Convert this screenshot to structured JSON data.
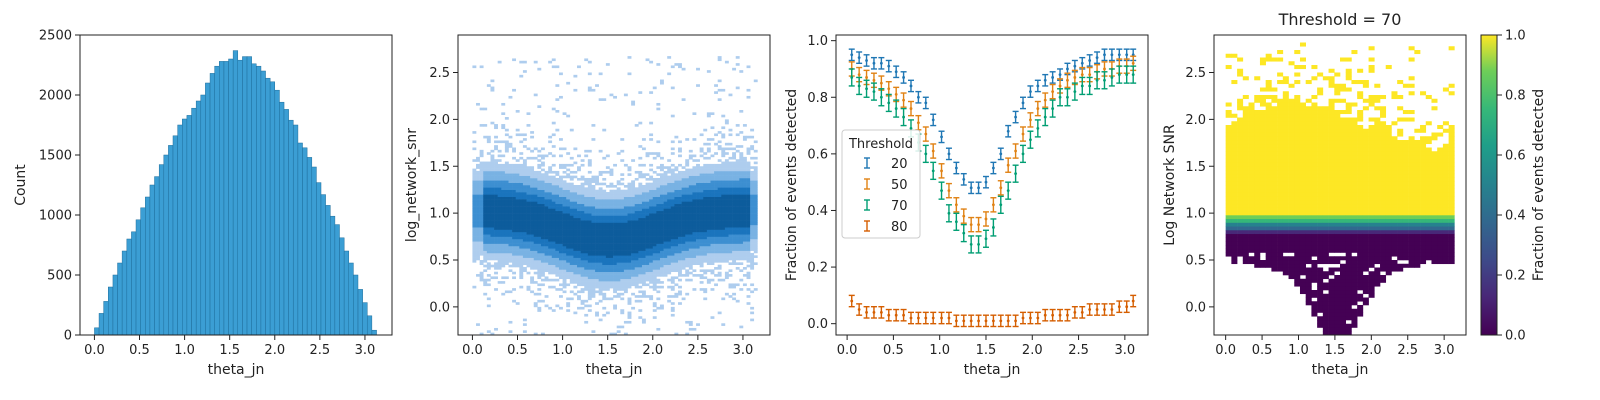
{
  "chart_data": [
    {
      "type": "bar",
      "title": "",
      "xlabel": "theta_jn",
      "ylabel": "Count",
      "xlim": [
        -0.16,
        3.3
      ],
      "ylim": [
        0,
        2500
      ],
      "xticks": [
        "0.0",
        "0.5",
        "1.0",
        "1.5",
        "2.0",
        "2.5",
        "3.0"
      ],
      "yticks": [
        "0",
        "500",
        "1000",
        "1500",
        "2000",
        "2500"
      ],
      "bin_width": 0.0513,
      "x": [
        0.026,
        0.077,
        0.128,
        0.179,
        0.231,
        0.282,
        0.333,
        0.385,
        0.436,
        0.487,
        0.538,
        0.59,
        0.641,
        0.692,
        0.744,
        0.795,
        0.846,
        0.897,
        0.949,
        1.0,
        1.051,
        1.103,
        1.154,
        1.205,
        1.256,
        1.308,
        1.359,
        1.41,
        1.462,
        1.513,
        1.564,
        1.615,
        1.667,
        1.718,
        1.769,
        1.821,
        1.872,
        1.923,
        1.974,
        2.026,
        2.077,
        2.128,
        2.179,
        2.231,
        2.282,
        2.333,
        2.385,
        2.436,
        2.487,
        2.538,
        2.59,
        2.641,
        2.692,
        2.744,
        2.795,
        2.846,
        2.897,
        2.949,
        3.0,
        3.051,
        3.103
      ],
      "values": [
        60,
        180,
        280,
        400,
        500,
        600,
        700,
        800,
        860,
        960,
        1060,
        1150,
        1250,
        1320,
        1420,
        1500,
        1580,
        1660,
        1750,
        1800,
        1830,
        1890,
        1950,
        2000,
        2100,
        2180,
        2240,
        2280,
        2280,
        2300,
        2370,
        2290,
        2320,
        2320,
        2260,
        2240,
        2200,
        2140,
        2110,
        2040,
        1940,
        1880,
        1790,
        1750,
        1600,
        1560,
        1480,
        1400,
        1270,
        1170,
        1080,
        990,
        920,
        810,
        700,
        600,
        500,
        380,
        270,
        160,
        40
      ],
      "color": "#3b9ed4"
    },
    {
      "type": "heatmap",
      "title": "",
      "xlabel": "theta_jn",
      "ylabel": "log_network_snr",
      "xlim": [
        -0.16,
        3.3
      ],
      "ylim": [
        -0.3,
        2.9
      ],
      "xticks": [
        "0.0",
        "0.5",
        "1.0",
        "1.5",
        "2.0",
        "2.5",
        "3.0"
      ],
      "yticks": [
        "0.0",
        "0.5",
        "1.0",
        "1.5",
        "2.0",
        "2.5"
      ],
      "description": "2D histogram of events: densest band near log_network_snr 1.0 at the edges dipping to ~0.7 at theta_jn 1.5; sparse points up to ~2.6",
      "colormap": [
        "#c6dcf2",
        "#0c5a99"
      ]
    },
    {
      "type": "scatter",
      "title": "",
      "xlabel": "theta_jn",
      "ylabel": "Fraction of events detected",
      "xlim": [
        -0.12,
        3.25
      ],
      "ylim": [
        -0.04,
        1.02
      ],
      "xticks": [
        "0.0",
        "0.5",
        "1.0",
        "1.5",
        "2.0",
        "2.5",
        "3.0"
      ],
      "yticks": [
        "0.0",
        "0.2",
        "0.4",
        "0.6",
        "0.8",
        "1.0"
      ],
      "legend_title": "Threshold",
      "legend_position": "center-left",
      "x": [
        0.05,
        0.13,
        0.21,
        0.29,
        0.37,
        0.45,
        0.53,
        0.61,
        0.69,
        0.77,
        0.85,
        0.93,
        1.02,
        1.1,
        1.18,
        1.26,
        1.34,
        1.42,
        1.5,
        1.58,
        1.66,
        1.74,
        1.82,
        1.9,
        1.98,
        2.06,
        2.14,
        2.22,
        2.3,
        2.38,
        2.46,
        2.54,
        2.62,
        2.7,
        2.78,
        2.86,
        2.94,
        3.02,
        3.09
      ],
      "series": [
        {
          "name": "20",
          "color": "#1f77b4",
          "err": 0.02,
          "values": [
            0.95,
            0.94,
            0.93,
            0.92,
            0.92,
            0.91,
            0.89,
            0.87,
            0.84,
            0.8,
            0.78,
            0.72,
            0.66,
            0.6,
            0.55,
            0.51,
            0.48,
            0.48,
            0.5,
            0.55,
            0.6,
            0.68,
            0.73,
            0.78,
            0.82,
            0.84,
            0.86,
            0.87,
            0.88,
            0.9,
            0.91,
            0.92,
            0.93,
            0.94,
            0.95,
            0.95,
            0.95,
            0.95,
            0.95
          ]
        },
        {
          "name": "50",
          "color": "#e08214",
          "err": 0.025,
          "values": [
            0.9,
            0.88,
            0.87,
            0.86,
            0.85,
            0.83,
            0.81,
            0.79,
            0.76,
            0.71,
            0.67,
            0.61,
            0.54,
            0.47,
            0.42,
            0.38,
            0.35,
            0.35,
            0.37,
            0.42,
            0.48,
            0.56,
            0.61,
            0.67,
            0.72,
            0.76,
            0.79,
            0.82,
            0.84,
            0.86,
            0.87,
            0.88,
            0.88,
            0.89,
            0.9,
            0.9,
            0.91,
            0.91,
            0.92
          ]
        },
        {
          "name": "70",
          "color": "#009e73",
          "err": 0.03,
          "values": [
            0.87,
            0.84,
            0.83,
            0.82,
            0.8,
            0.78,
            0.76,
            0.73,
            0.69,
            0.64,
            0.6,
            0.54,
            0.47,
            0.39,
            0.36,
            0.32,
            0.28,
            0.28,
            0.3,
            0.34,
            0.42,
            0.47,
            0.53,
            0.6,
            0.65,
            0.69,
            0.73,
            0.76,
            0.8,
            0.8,
            0.82,
            0.84,
            0.84,
            0.86,
            0.86,
            0.87,
            0.88,
            0.88,
            0.88
          ]
        },
        {
          "name": "80",
          "color": "#d55e00",
          "err": 0.02,
          "values": [
            0.08,
            0.05,
            0.04,
            0.04,
            0.04,
            0.03,
            0.03,
            0.03,
            0.02,
            0.02,
            0.02,
            0.02,
            0.02,
            0.02,
            0.01,
            0.01,
            0.01,
            0.01,
            0.01,
            0.01,
            0.01,
            0.01,
            0.01,
            0.02,
            0.02,
            0.02,
            0.03,
            0.03,
            0.03,
            0.03,
            0.04,
            0.04,
            0.05,
            0.05,
            0.05,
            0.05,
            0.06,
            0.06,
            0.08
          ]
        }
      ]
    },
    {
      "type": "heatmap",
      "title": "Threshold = 70",
      "xlabel": "theta_jn",
      "ylabel": "Log Network SNR",
      "xlim": [
        -0.16,
        3.3
      ],
      "ylim": [
        -0.3,
        2.9
      ],
      "xticks": [
        "0.0",
        "0.5",
        "1.0",
        "1.5",
        "2.0",
        "2.5",
        "3.0"
      ],
      "yticks": [
        "0.0",
        "0.5",
        "1.0",
        "1.5",
        "2.0",
        "2.5"
      ],
      "colorbar_label": "Fraction of events detected",
      "colorbar_ticks": [
        "0.0",
        "0.2",
        "0.4",
        "0.6",
        "0.8",
        "1.0"
      ],
      "colormap": "viridis",
      "description": "Fraction detected ~1.0 above log SNR ~0.95, ~0 below ~0.75, with a transition band in between"
    }
  ]
}
